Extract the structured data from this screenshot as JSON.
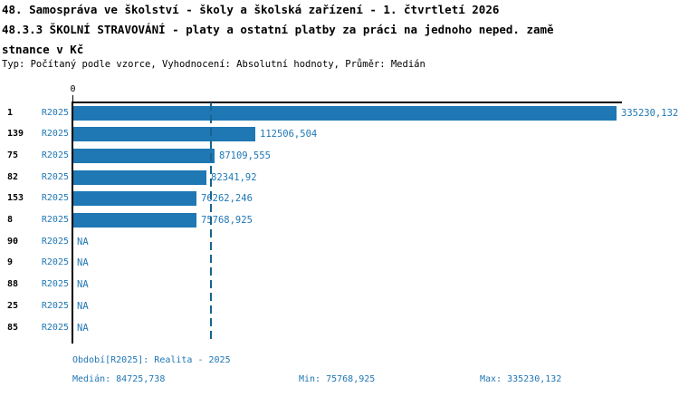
{
  "header": {
    "title_line1": "48. Samospráva ve školství - školy a školská zařízení - 1. čtvrtletí 2026",
    "title_line2": "48.3.3 ŠKOLNÍ STRAVOVÁNÍ - platy a ostatní platby za práci na jednoho neped. zamě",
    "title_line3": "stnance v Kč",
    "meta_line": "Typ: Počítaný podle vzorce, Vyhodnocení: Absolutní hodnoty, Průměr: Medián"
  },
  "chart_data": {
    "type": "bar",
    "orientation": "horizontal",
    "title": "48.3.3 ŠKOLNÍ STRAVOVÁNÍ - platy a ostatní platby za práci na jednoho neped. zaměstnance v Kč",
    "categories": [
      "1",
      "139",
      "75",
      "82",
      "153",
      "8",
      "90",
      "9",
      "88",
      "25",
      "85"
    ],
    "series": [
      {
        "name": "R2025",
        "values": [
          335230.132,
          112506.504,
          87109.555,
          82341.92,
          76262.246,
          75768.925,
          null,
          null,
          null,
          null,
          null
        ],
        "value_labels": [
          "335230,132",
          "112506,504",
          "87109,555",
          "82341,92",
          "76262,246",
          "75768,925",
          "NA",
          "NA",
          "NA",
          "NA",
          "NA"
        ]
      }
    ],
    "axis": {
      "zero_tick_label": "0",
      "xmin": 0,
      "xmax": 335230.132,
      "grid": false
    },
    "median_reference_line": 84725.738,
    "legend_position": "none",
    "colors": {
      "bar": "#1f77b4",
      "text_blue": "#1f77b4",
      "median_line": "#17648f",
      "axis": "#000000"
    }
  },
  "footer": {
    "period_line": "Období[R2025]: Realita - 2025",
    "median_label": "Medián: 84725,738",
    "min_label": "Min: 75768,925",
    "max_label": "Max: 335230,132"
  }
}
